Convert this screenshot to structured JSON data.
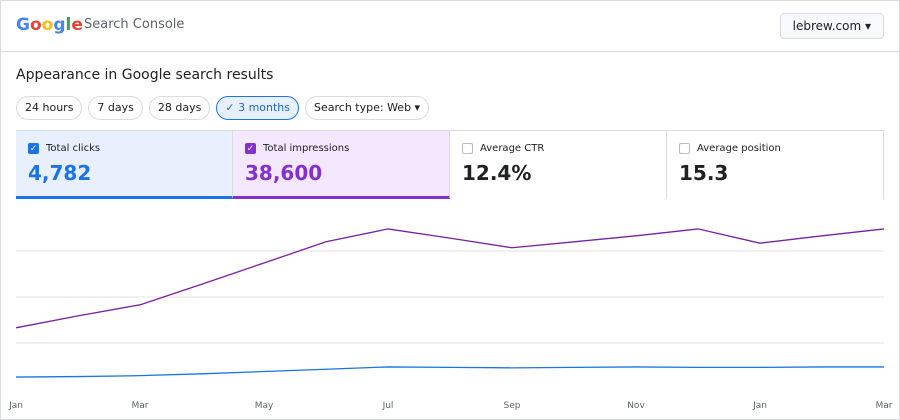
{
  "header": {
    "logo": [
      "G",
      "o",
      "o",
      "g",
      "l",
      "e"
    ],
    "product": "Search Console",
    "property": "lebrew.com ▾"
  },
  "section_title": "Appearance in Google search results",
  "chips": [
    "24 hours",
    "7 days",
    "28 days",
    "✓ 3 months",
    "Search type: Web ▾"
  ],
  "selected_chip": 3,
  "cards": [
    {
      "label": "Total clicks",
      "value": "4,782",
      "checked": true,
      "color": "#1a73e8",
      "background": "#e8f0fe"
    },
    {
      "label": "Total impressions",
      "value": "38,600",
      "checked": true,
      "color": "#8430ce",
      "background": "#f3e8fd"
    },
    {
      "label": "Average CTR",
      "value": "12.4%",
      "checked": false
    },
    {
      "label": "Average position",
      "value": "15.3",
      "checked": false
    }
  ],
  "chart_data": {
    "type": "line",
    "categories": [
      "Jan",
      null,
      "Mar",
      null,
      "May",
      null,
      "Jul",
      null,
      "Sep",
      null,
      "Nov",
      null,
      "Jan",
      null,
      "Mar"
    ],
    "series": [
      {
        "name": "Total impressions",
        "color": "#7b1fa2",
        "values": [
          1330,
          1590,
          1830,
          2280,
          2740,
          3200,
          3480,
          3280,
          3070,
          3200,
          3330,
          3480,
          3170,
          3330,
          3480
        ]
      },
      {
        "name": "Total clicks",
        "color": "#1a73e8",
        "values": [
          260,
          270,
          290,
          330,
          380,
          430,
          480,
          470,
          460,
          470,
          480,
          470,
          470,
          480,
          480
        ]
      }
    ],
    "ylim": [
      0,
      4000
    ],
    "yticks": [
      1000,
      2000,
      3000
    ],
    "grid": true
  }
}
